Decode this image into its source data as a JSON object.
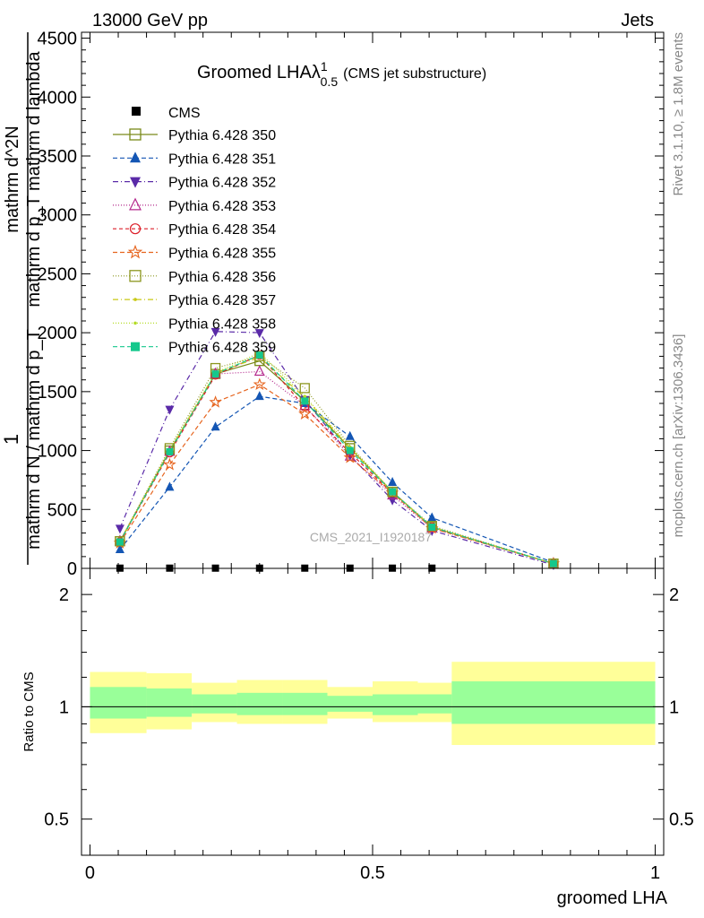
{
  "header": {
    "left": "13000 GeV pp",
    "right": "Jets"
  },
  "side": {
    "rivet": "Rivet 3.1.10, ≥ 1.8M events",
    "mcplots": "mcplots.cern.ch [arXiv:1306.3436]"
  },
  "watermark": "CMS_2021_I1920187",
  "colors": {
    "band_outer": "#ffff99",
    "band_inner": "#99ff99",
    "cms": "#000000"
  },
  "chart_data": [
    {
      "type": "line",
      "title": "Groomed LHA",
      "title_lambda": "λ",
      "title_sup": "1",
      "title_sub": "0.5",
      "title_note": "(CMS jet substructure)",
      "ylabel_parts": [
        "1",
        "mathrm d N / mathrm d p_T",
        "mathrm d^2N",
        "mathrm d p_T mathrm d lambda"
      ],
      "ylim": [
        0,
        4550
      ],
      "yticks": [
        0,
        500,
        1000,
        1500,
        2000,
        2500,
        3000,
        3500,
        4000,
        4500
      ],
      "yticklabels": [
        "0",
        "500",
        "1000",
        "1500",
        "2000",
        "2500",
        "3000",
        "3500",
        "4000",
        "4500"
      ],
      "xlim": [
        -0.015,
        1.015
      ],
      "legend": {
        "placement": "top-left",
        "data_label": "CMS"
      },
      "x": [
        0.053,
        0.141,
        0.222,
        0.3,
        0.38,
        0.46,
        0.535,
        0.605,
        0.82
      ],
      "cms": [
        2,
        2,
        2,
        2,
        2,
        2,
        2,
        2
      ],
      "cms_x": [
        0.053,
        0.141,
        0.222,
        0.3,
        0.38,
        0.46,
        0.535,
        0.605
      ],
      "series": [
        {
          "name": "Pythia 6.428 350",
          "color": "#7a8a1a",
          "dash": "",
          "marker": "square-open",
          "values": [
            230,
            1000,
            1650,
            1760,
            1420,
            1020,
            650,
            350,
            40
          ]
        },
        {
          "name": "Pythia 6.428 351",
          "color": "#1456b4",
          "dash": "5,3",
          "marker": "triangle",
          "values": [
            160,
            690,
            1200,
            1460,
            1400,
            1120,
            730,
            430,
            50
          ]
        },
        {
          "name": "Pythia 6.428 352",
          "color": "#5a2aa8",
          "dash": "6,3,1,3",
          "marker": "triangle-down",
          "values": [
            340,
            1350,
            2010,
            2000,
            1430,
            960,
            580,
            320,
            30
          ]
        },
        {
          "name": "Pythia 6.428 353",
          "color": "#b4288c",
          "dash": "1,2",
          "marker": "triangle-open",
          "values": [
            230,
            990,
            1650,
            1670,
            1380,
            950,
            620,
            340,
            40
          ]
        },
        {
          "name": "Pythia 6.428 354",
          "color": "#dc1e28",
          "dash": "4,3",
          "marker": "circle-open",
          "values": [
            225,
            980,
            1640,
            1810,
            1370,
            980,
            640,
            350,
            40
          ]
        },
        {
          "name": "Pythia 6.428 355",
          "color": "#e6641e",
          "dash": "5,3",
          "marker": "star",
          "values": [
            215,
            880,
            1410,
            1560,
            1310,
            940,
            640,
            340,
            40
          ]
        },
        {
          "name": "Pythia 6.428 356",
          "color": "#8c961e",
          "dash": "1,2",
          "marker": "square-open",
          "values": [
            230,
            1020,
            1700,
            1800,
            1530,
            1040,
            650,
            360,
            40
          ]
        },
        {
          "name": "Pythia 6.428 357",
          "color": "#c8c814",
          "dash": "6,3,1,3",
          "marker": "dot",
          "values": [
            225,
            1000,
            1660,
            1790,
            1450,
            1020,
            650,
            350,
            40
          ]
        },
        {
          "name": "Pythia 6.428 358",
          "color": "#b4dc28",
          "dash": "1,2",
          "marker": "dot",
          "values": [
            225,
            1000,
            1660,
            1830,
            1460,
            1030,
            650,
            350,
            40
          ]
        },
        {
          "name": "Pythia 6.428 359",
          "color": "#14c88c",
          "dash": "5,3",
          "marker": "square",
          "values": [
            225,
            990,
            1650,
            1810,
            1420,
            1000,
            650,
            350,
            40
          ]
        }
      ]
    },
    {
      "type": "area",
      "ylabel": "Ratio to CMS",
      "xlabel": "groomed LHA",
      "xlim": [
        -0.015,
        1.015
      ],
      "ylim": [
        0.4,
        2.35
      ],
      "log_y": true,
      "yticks": [
        0.5,
        1,
        2
      ],
      "yticklabels": [
        "0.5",
        "1",
        "2"
      ],
      "xticks": [
        0,
        0.5,
        1
      ],
      "xticklabels": [
        "0",
        "0.5",
        "1"
      ],
      "reference_line": 1,
      "bins": [
        {
          "x0": 0.0,
          "x1": 0.1,
          "outer": [
            0.85,
            1.24
          ],
          "inner": [
            0.93,
            1.13
          ]
        },
        {
          "x0": 0.1,
          "x1": 0.18,
          "outer": [
            0.87,
            1.23
          ],
          "inner": [
            0.94,
            1.12
          ]
        },
        {
          "x0": 0.18,
          "x1": 0.26,
          "outer": [
            0.91,
            1.16
          ],
          "inner": [
            0.96,
            1.08
          ]
        },
        {
          "x0": 0.26,
          "x1": 0.34,
          "outer": [
            0.9,
            1.18
          ],
          "inner": [
            0.95,
            1.09
          ]
        },
        {
          "x0": 0.34,
          "x1": 0.42,
          "outer": [
            0.9,
            1.18
          ],
          "inner": [
            0.95,
            1.09
          ]
        },
        {
          "x0": 0.42,
          "x1": 0.5,
          "outer": [
            0.93,
            1.13
          ],
          "inner": [
            0.97,
            1.07
          ]
        },
        {
          "x0": 0.5,
          "x1": 0.58,
          "outer": [
            0.91,
            1.17
          ],
          "inner": [
            0.95,
            1.08
          ]
        },
        {
          "x0": 0.58,
          "x1": 0.64,
          "outer": [
            0.91,
            1.16
          ],
          "inner": [
            0.96,
            1.08
          ]
        },
        {
          "x0": 0.64,
          "x1": 1.0,
          "outer": [
            0.79,
            1.32
          ],
          "inner": [
            0.9,
            1.17
          ]
        }
      ]
    }
  ]
}
